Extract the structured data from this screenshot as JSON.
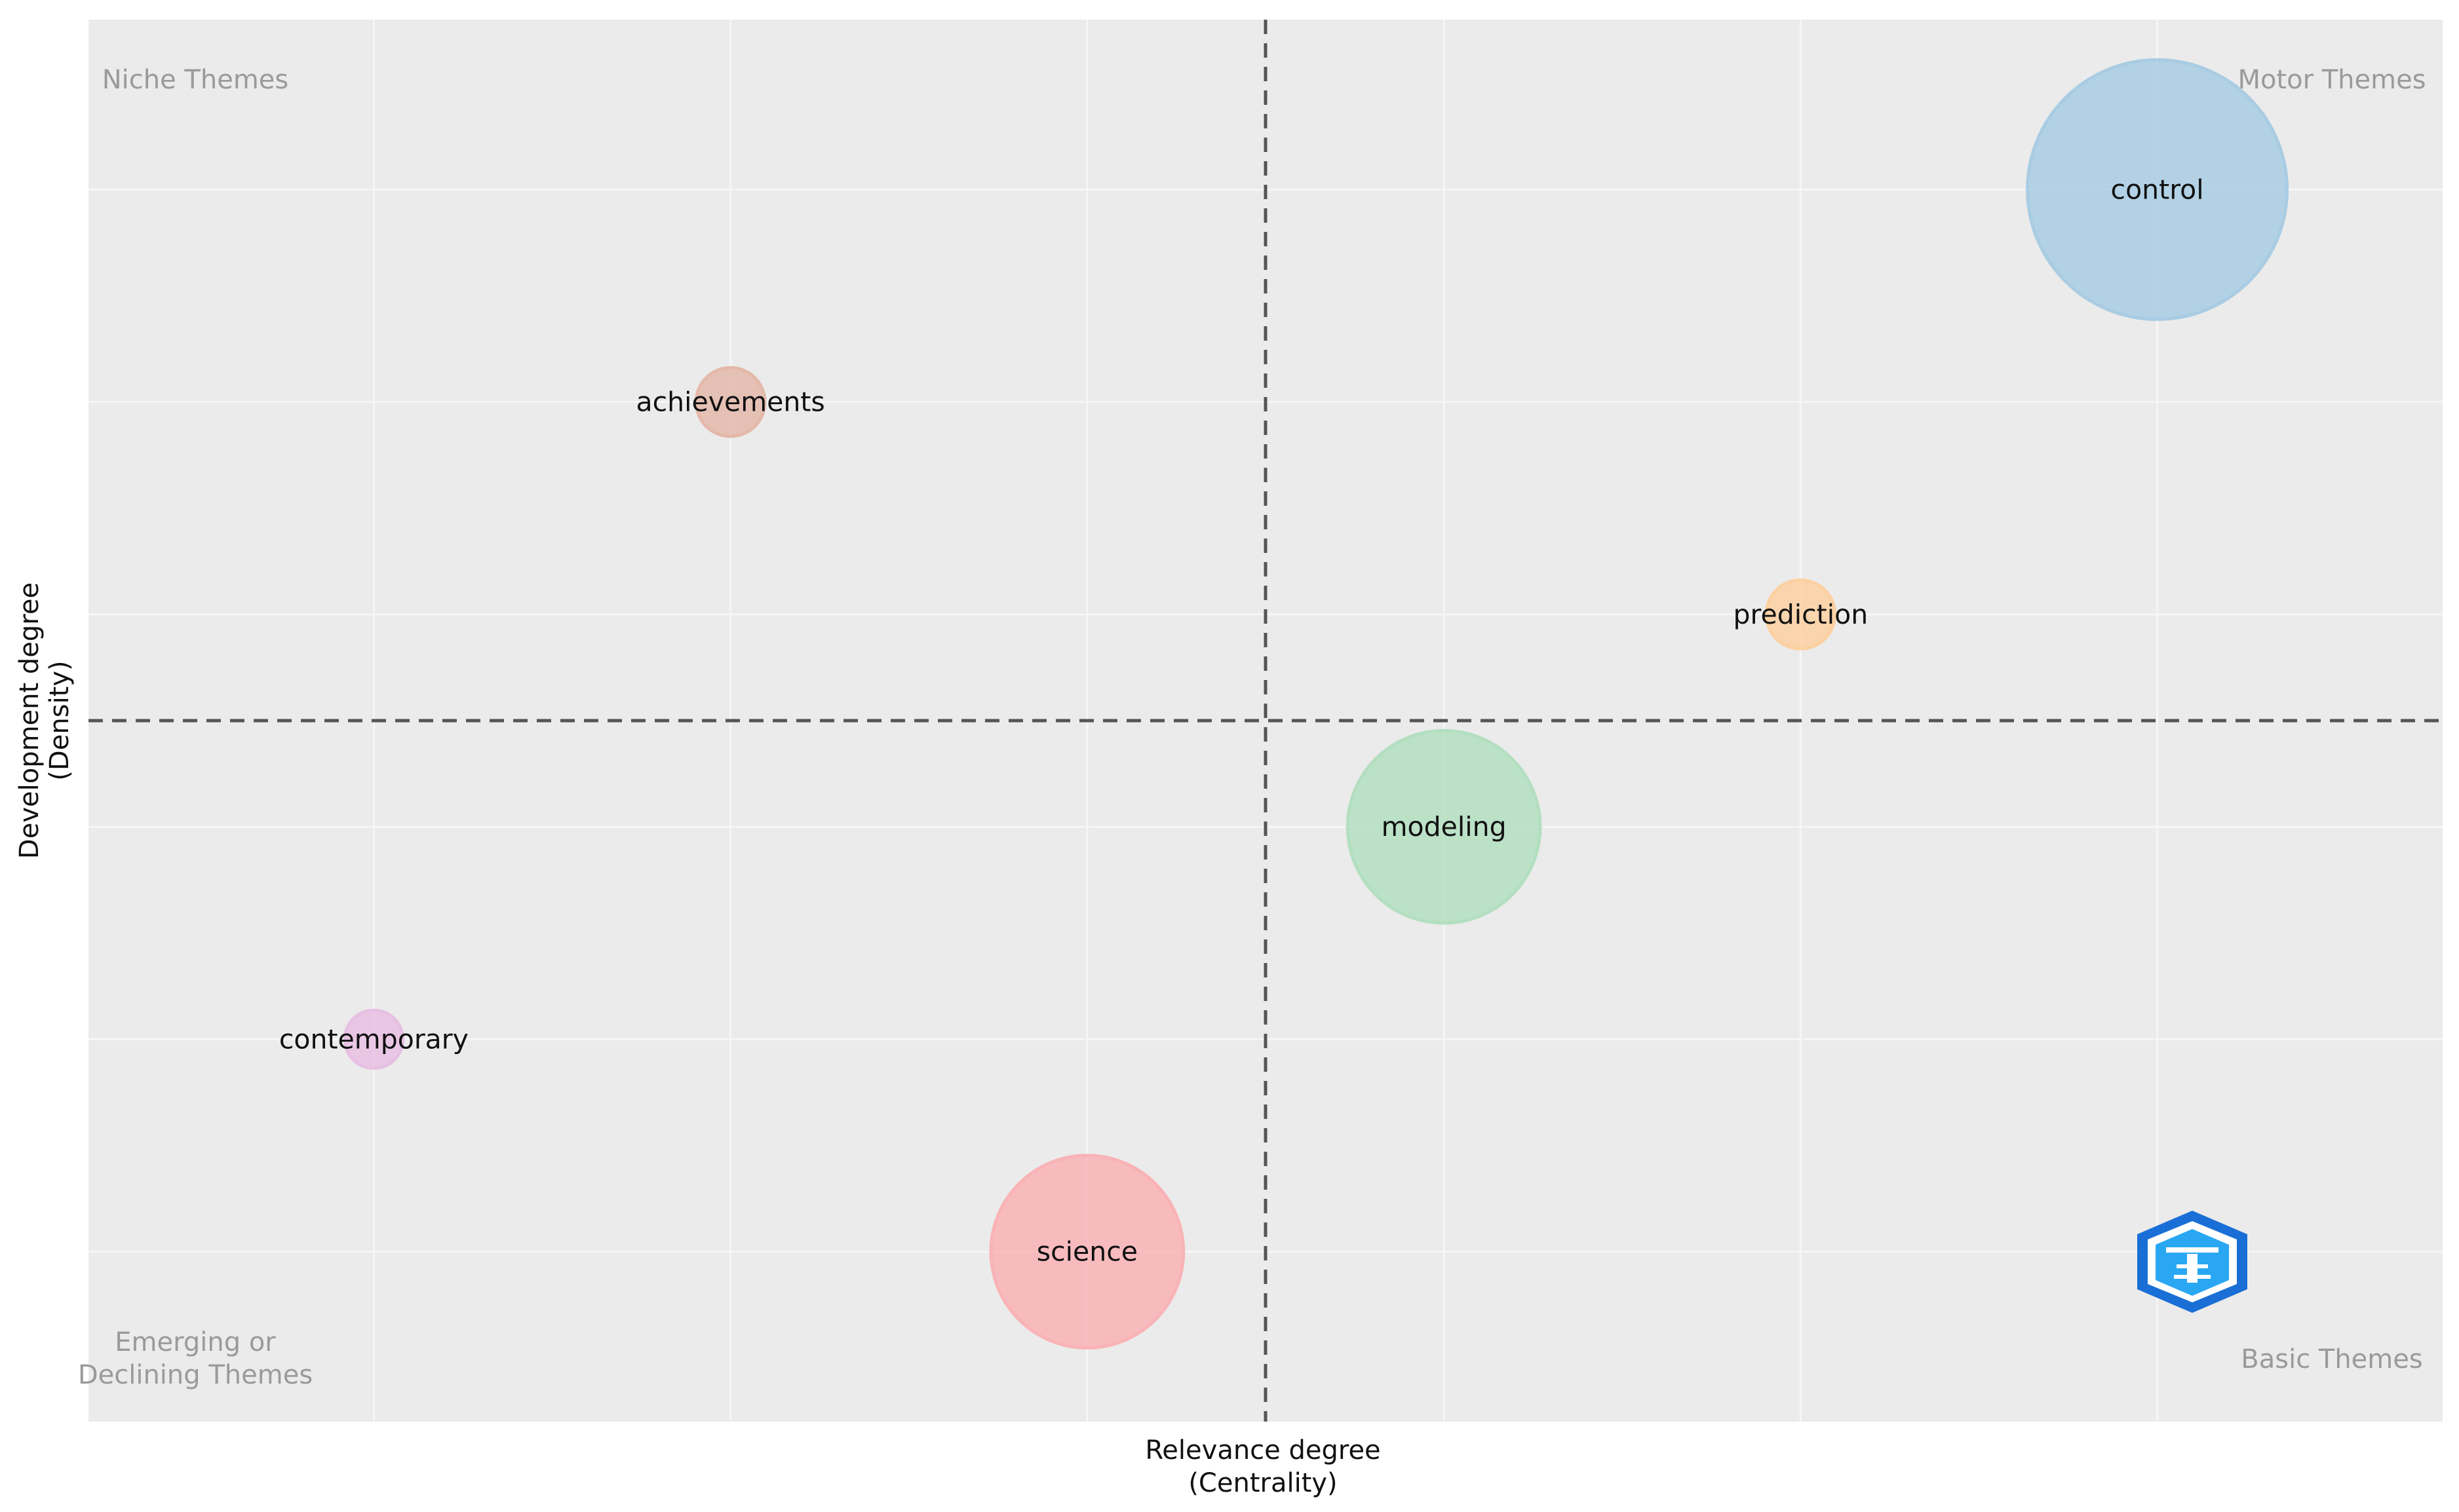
{
  "chart_data": {
    "type": "scatter",
    "subtype": "bubble",
    "title": "",
    "xlabel": "Relevance degree\n(Centrality)",
    "ylabel": "Development degree\n(Density)",
    "xlim": [
      0,
      6.6
    ],
    "ylim": [
      0,
      6.6
    ],
    "divider_x": 3.3,
    "divider_y": 3.3,
    "grid": true,
    "quadrant_labels": {
      "top_left": "Niche Themes",
      "top_right": "Motor Themes",
      "bottom_left": "Emerging or\nDeclining Themes",
      "bottom_right": "Basic Themes"
    },
    "points": [
      {
        "label": "control",
        "x": 5.8,
        "y": 5.8,
        "size": 100,
        "color": "#a9cce3"
      },
      {
        "label": "achievements",
        "x": 1.8,
        "y": 4.8,
        "size": 7,
        "color": "#e4b9aa"
      },
      {
        "label": "prediction",
        "x": 4.8,
        "y": 3.8,
        "size": 7,
        "color": "#fcd0a1"
      },
      {
        "label": "modeling",
        "x": 3.8,
        "y": 2.8,
        "size": 55,
        "color": "#b3dfc0"
      },
      {
        "label": "contemporary",
        "x": 0.8,
        "y": 1.8,
        "size": 5,
        "color": "#e7c0e3"
      },
      {
        "label": "science",
        "x": 2.8,
        "y": 0.8,
        "size": 55,
        "color": "#f9b3b6"
      }
    ]
  }
}
